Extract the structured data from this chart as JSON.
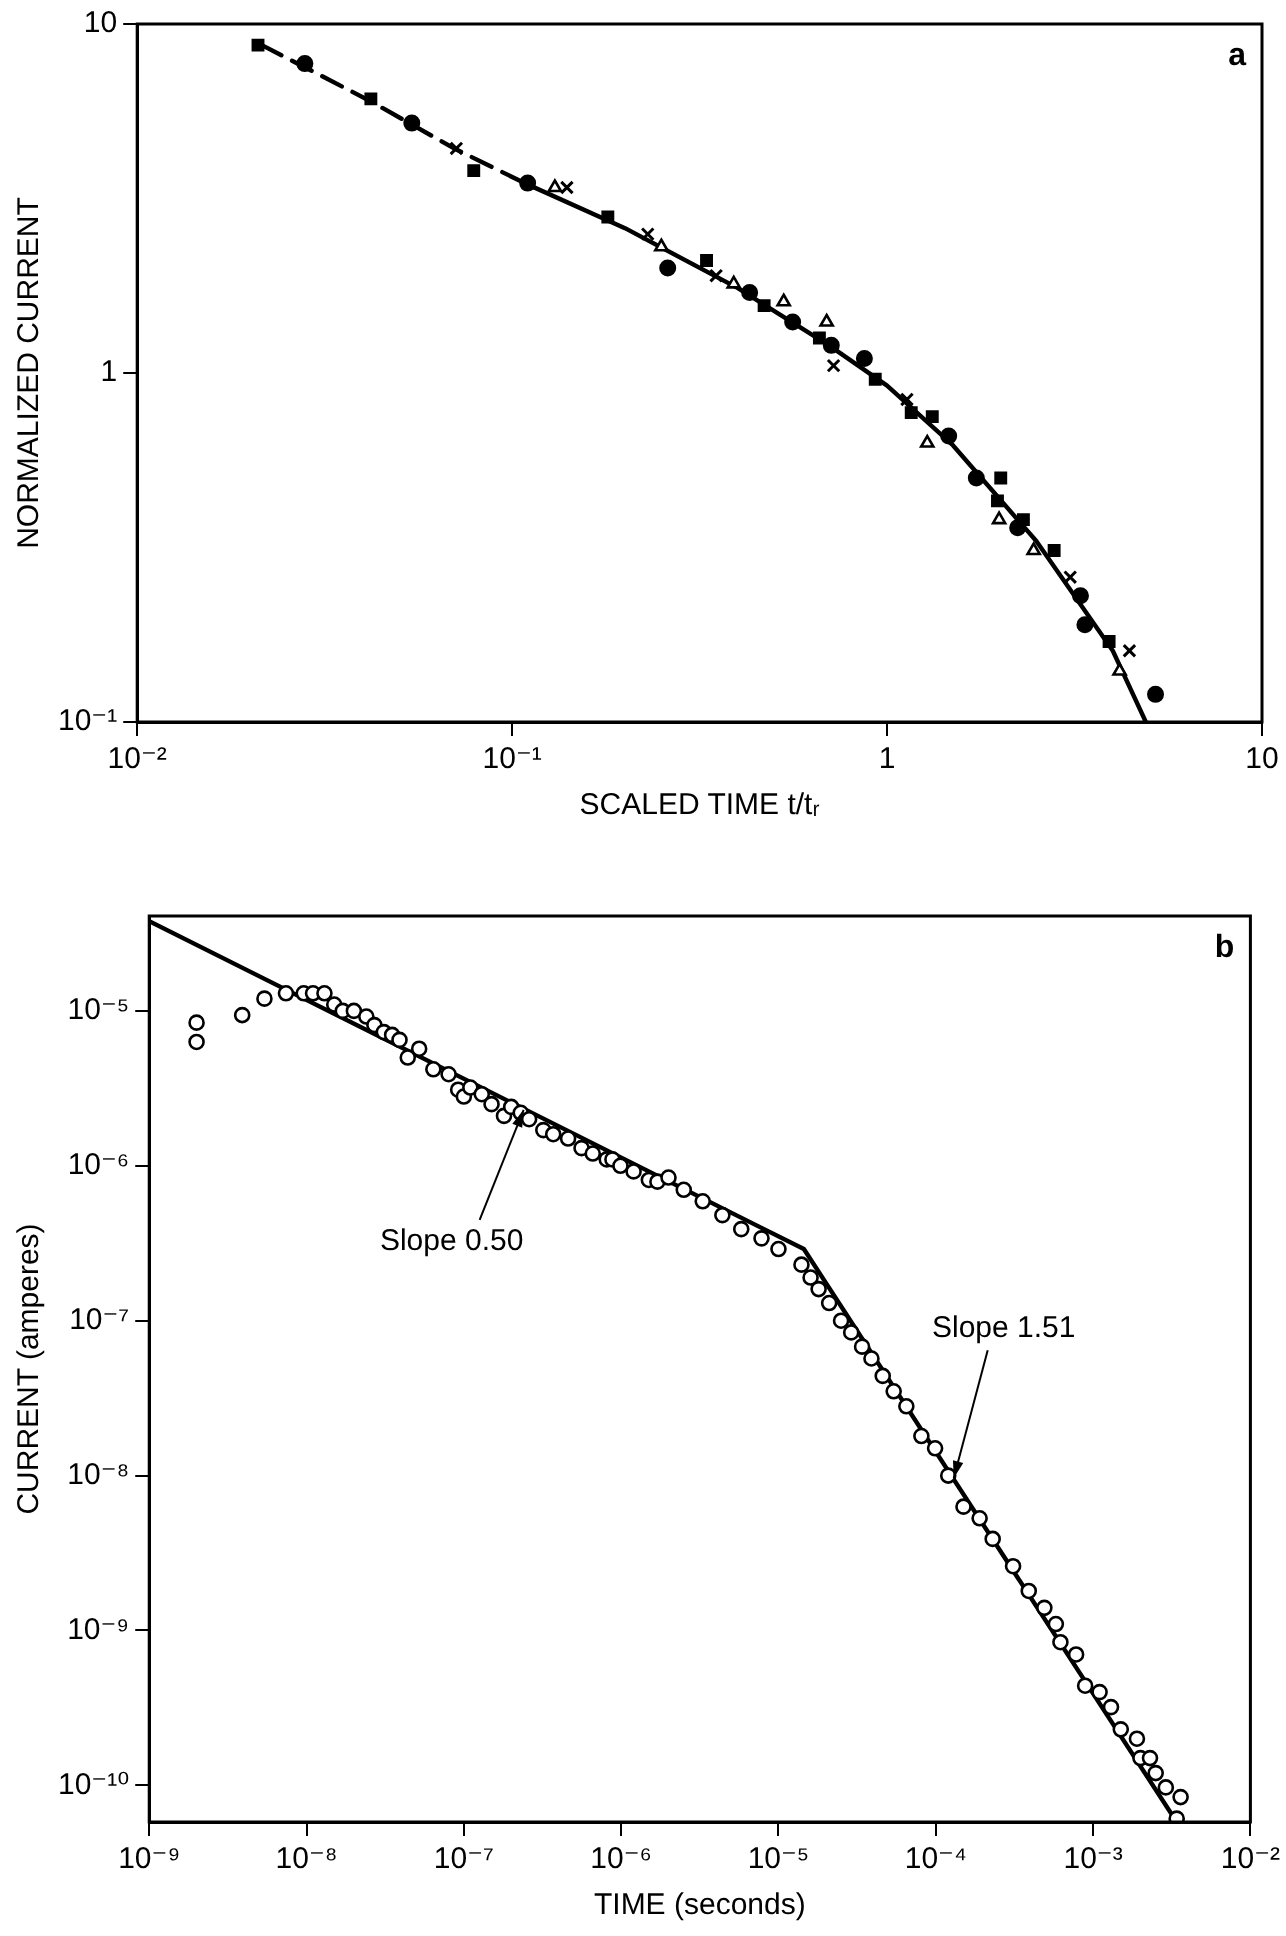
{
  "chart_data": [
    {
      "type": "scatter",
      "xlabel": "SCALED TIME t/tᵣ",
      "ylabel": "NORMALIZED CURRENT",
      "log": "xy",
      "xlim": [
        0.01,
        10
      ],
      "ylim": [
        0.1,
        10
      ],
      "xticks": [
        {
          "value": 0.01,
          "label": "10⁻²"
        },
        {
          "value": 0.1,
          "label": "10⁻¹"
        },
        1,
        10
      ],
      "yticks": [
        {
          "value": 0.1,
          "label": "10⁻¹"
        },
        1,
        10
      ],
      "annotations": [
        "a"
      ],
      "series": [
        {
          "type": "line",
          "color": "#000000",
          "marker": "none",
          "line_style": "dashed",
          "x": [
            0.0215,
            0.042,
            0.07,
            0.108
          ],
          "values": [
            8.7,
            6.0,
            4.4,
            3.5
          ]
        },
        {
          "type": "line",
          "color": "#000000",
          "marker": "none",
          "line_style": "solid",
          "x": [
            0.108,
            0.2,
            0.4,
            0.7,
            1.0,
            1.5,
            2.5,
            4.0,
            4.9
          ],
          "values": [
            3.5,
            2.6,
            1.75,
            1.2,
            0.92,
            0.62,
            0.33,
            0.16,
            0.1
          ]
        },
        {
          "color": "#000000",
          "marker": "square",
          "x": [
            0.021,
            0.042,
            0.079,
            0.18,
            0.33,
            0.47,
            0.66,
            0.93,
            1.16,
            1.32,
            2.01,
            1.97,
            2.31,
            2.79,
            3.91
          ],
          "values": [
            8.7,
            6.1,
            3.8,
            2.8,
            2.1,
            1.56,
            1.26,
            0.96,
            0.77,
            0.75,
            0.5,
            0.43,
            0.38,
            0.31,
            0.17
          ]
        },
        {
          "color": "#000000",
          "marker": "circle",
          "x": [
            0.028,
            0.054,
            0.11,
            0.26,
            0.43,
            0.56,
            0.71,
            0.87,
            1.46,
            1.73,
            2.23,
            3.28,
            3.37,
            5.2
          ],
          "values": [
            7.7,
            5.2,
            3.5,
            2.0,
            1.7,
            1.4,
            1.2,
            1.1,
            0.66,
            0.5,
            0.36,
            0.23,
            0.19,
            0.12
          ]
        },
        {
          "color": "#000000",
          "marker": "cross",
          "x": [
            0.071,
            0.14,
            0.23,
            0.35,
            0.72,
            1.13,
            3.08,
            4.43
          ],
          "values": [
            4.4,
            3.4,
            2.5,
            1.9,
            1.05,
            0.84,
            0.26,
            0.16
          ]
        },
        {
          "color": "#000000",
          "marker": "triangle",
          "x": [
            0.13,
            0.25,
            0.39,
            0.53,
            0.69,
            1.28,
            1.99,
            2.46,
            4.17
          ],
          "values": [
            3.4,
            2.3,
            1.8,
            1.6,
            1.4,
            0.63,
            0.38,
            0.31,
            0.14
          ]
        }
      ]
    },
    {
      "type": "scatter",
      "xlabel": "TIME (seconds)",
      "ylabel": "CURRENT (amperes)",
      "log": "xy",
      "xlim": [
        1e-09,
        0.01
      ],
      "ylim": [
        5.8e-11,
        4.1e-05
      ],
      "xticks": [
        {
          "value": 1e-09,
          "label": "10⁻⁹"
        },
        {
          "value": 1e-08,
          "label": "10⁻⁸"
        },
        {
          "value": 1e-07,
          "label": "10⁻⁷"
        },
        {
          "value": 1e-06,
          "label": "10⁻⁶"
        },
        {
          "value": 1e-05,
          "label": "10⁻⁵"
        },
        {
          "value": 0.0001,
          "label": "10⁻⁴"
        },
        {
          "value": 0.001,
          "label": "10⁻³"
        },
        {
          "value": 0.01,
          "label": "10⁻²"
        }
      ],
      "yticks": [
        {
          "value": 1e-10,
          "label": "10⁻¹⁰"
        },
        {
          "value": 1e-09,
          "label": "10⁻⁹"
        },
        {
          "value": 1e-08,
          "label": "10⁻⁸"
        },
        {
          "value": 1e-07,
          "label": "10⁻⁷"
        },
        {
          "value": 1e-06,
          "label": "10⁻⁶"
        },
        {
          "value": 1e-05,
          "label": "10⁻⁵"
        }
      ],
      "annotations": [
        "b",
        {
          "text": "Slope 0.50",
          "x": 2.4e-07,
          "y": 2.3e-06
        },
        {
          "text": "Slope 1.51",
          "x": 0.00013,
          "y": 9.6e-09
        }
      ],
      "series": [
        {
          "type": "line",
          "color": "#000000",
          "marker": "none",
          "line_style": "solid",
          "x": [
            1e-09,
            1.45e-05,
            0.0034
          ],
          "values": [
            3.8e-05,
            2.9e-07,
            5.8e-11
          ]
        },
        {
          "color": "#000000",
          "marker": "circle",
          "x": [
            2e-09,
            2e-09,
            3.9e-09,
            5.4e-09,
            7.4e-09,
            9.6e-09,
            1.1e-08,
            1.3e-08,
            1.5e-08,
            1.7e-08,
            2e-08,
            2.4e-08,
            2.7e-08,
            3.1e-08,
            3.5e-08,
            3.9e-08,
            4.4e-08,
            5.2e-08,
            6.4e-08,
            8e-08,
            9.2e-08,
            1e-07,
            1.1e-07,
            1.3e-07,
            1.5e-07,
            1.8e-07,
            2e-07,
            2.3e-07,
            2.6e-07,
            3.2e-07,
            3.7e-07,
            4.6e-07,
            5.6e-07,
            6.6e-07,
            8.1e-07,
            8.8e-07,
            9.9e-07,
            1.2e-06,
            1.5e-06,
            1.7e-06,
            2e-06,
            2.5e-06,
            3.3e-06,
            4.4e-06,
            5.8e-06,
            7.8e-06,
            1e-05,
            1.4e-05,
            1.6e-05,
            1.8e-05,
            2.1e-05,
            2.5e-05,
            2.9e-05,
            3.4e-05,
            3.9e-05,
            4.6e-05,
            5.4e-05,
            6.5e-05,
            8.1e-05,
            9.9e-05,
            0.00012,
            0.00015,
            0.00019,
            0.00023,
            0.00031,
            0.00039,
            0.00049,
            0.00058,
            0.00062,
            0.00078,
            0.00089,
            0.0011,
            0.0013,
            0.0015,
            0.0019,
            0.002,
            0.0023,
            0.0025,
            0.0029,
            0.0036,
            0.0034
          ],
          "values": [
            8.4e-06,
            6.3e-06,
            9.4e-06,
            1.2e-05,
            1.3e-05,
            1.3e-05,
            1.3e-05,
            1.3e-05,
            1.1e-05,
            1e-05,
            1e-05,
            9.2e-06,
            8.1e-06,
            7.3e-06,
            7e-06,
            6.5e-06,
            5e-06,
            5.7e-06,
            4.2e-06,
            3.9e-06,
            3.1e-06,
            2.8e-06,
            3.2e-06,
            2.9e-06,
            2.5e-06,
            2.1e-06,
            2.4e-06,
            2.2e-06,
            2e-06,
            1.7e-06,
            1.6e-06,
            1.5e-06,
            1.3e-06,
            1.2e-06,
            1.1e-06,
            1.1e-06,
            1e-06,
            9.2e-07,
            8.1e-07,
            7.9e-07,
            8.4e-07,
            7e-07,
            5.9e-07,
            4.8e-07,
            3.9e-07,
            3.4e-07,
            2.9e-07,
            2.3e-07,
            1.9e-07,
            1.6e-07,
            1.3e-07,
            1e-07,
            8.4e-08,
            6.8e-08,
            5.7e-08,
            4.4e-08,
            3.5e-08,
            2.8e-08,
            1.8e-08,
            1.5e-08,
            1e-08,
            6.3e-09,
            5.3e-09,
            3.9e-09,
            2.6e-09,
            1.8e-09,
            1.4e-09,
            1.1e-09,
            8.4e-10,
            7e-10,
            4.4e-10,
            4e-10,
            3.2e-10,
            2.3e-10,
            2e-10,
            1.5e-10,
            1.5e-10,
            1.2e-10,
            9.7e-11,
            8.4e-11,
            6.1e-11
          ]
        }
      ]
    }
  ]
}
